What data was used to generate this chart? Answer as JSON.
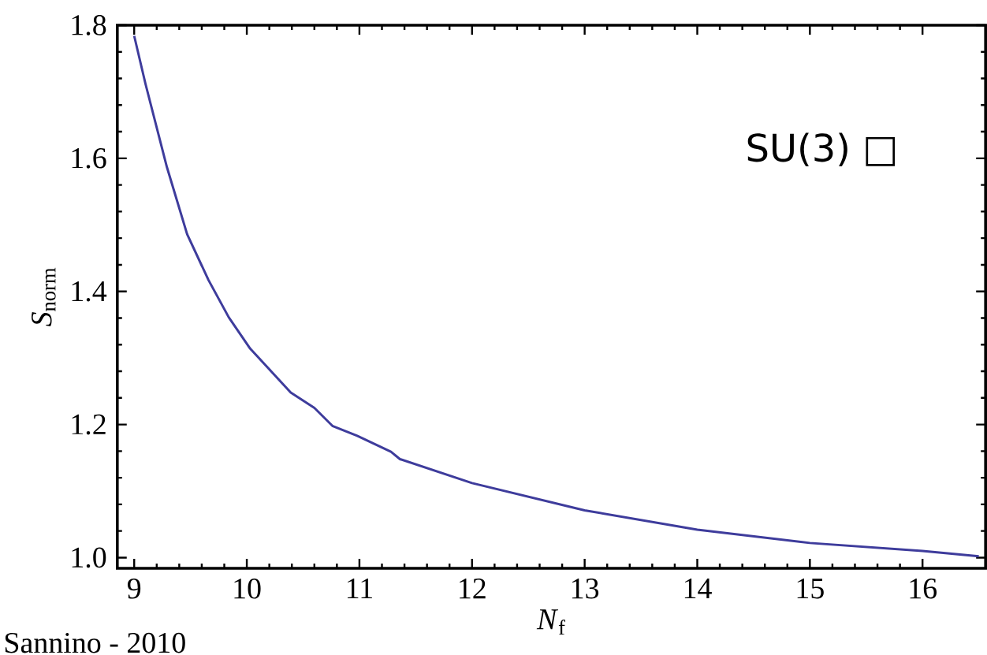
{
  "chart_data": {
    "type": "line",
    "xlabel": "*N*$_{f}$",
    "ylabel": "*S*$_{norm}$",
    "annotations": [
      "SU(3) □",
      "Sannino - 2010"
    ],
    "x": [
      9.0,
      9.1,
      9.29,
      9.47,
      9.66,
      9.84,
      10.03,
      10.39,
      10.6,
      10.76,
      10.98,
      11.28,
      11.36,
      12.0,
      13.0,
      14.0,
      15.0,
      16.0,
      16.5
    ],
    "series": [
      {
        "color": "#3e3c9c",
        "values": [
          1.784,
          1.712,
          1.587,
          1.486,
          1.417,
          1.361,
          1.314,
          1.248,
          1.225,
          1.198,
          1.183,
          1.159,
          1.148,
          1.112,
          1.071,
          1.042,
          1.022,
          1.01,
          1.002
        ]
      }
    ],
    "xlim": [
      8.85,
      16.56
    ],
    "ylim": [
      0.984,
      1.8
    ],
    "xticks": [
      9,
      10,
      11,
      12,
      13,
      14,
      15,
      16
    ],
    "yticks": [
      {
        "value": 1.0,
        "label": "1.0"
      },
      {
        "value": 1.2,
        "label": "1.2"
      },
      {
        "value": 1.4,
        "label": "1.4"
      },
      {
        "value": 1.6,
        "label": "1.6"
      },
      {
        "value": 1.8,
        "label": "1.8"
      }
    ],
    "grid": false,
    "legend": false,
    "marker": "none",
    "line_style": "solid"
  }
}
